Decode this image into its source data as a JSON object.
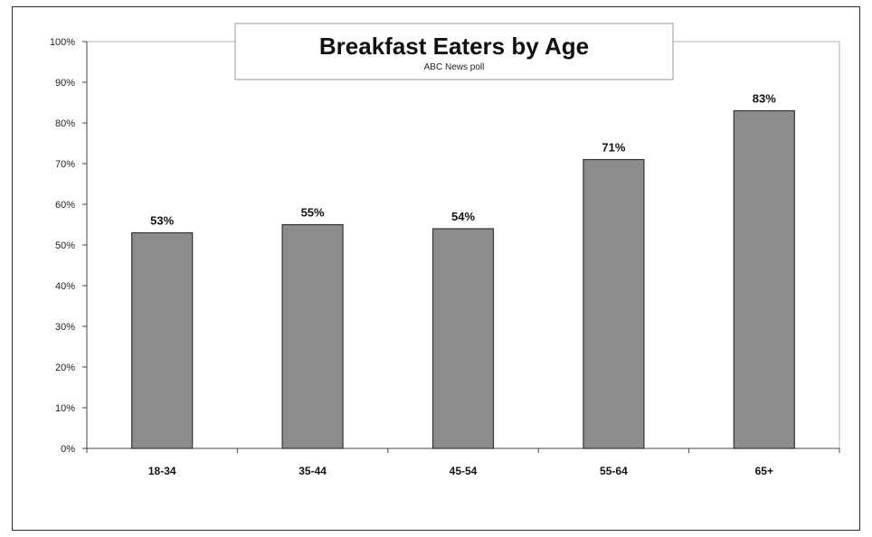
{
  "chart_data": {
    "type": "bar",
    "title": "Breakfast Eaters by Age",
    "subtitle": "ABC News poll",
    "categories": [
      "18-34",
      "35-44",
      "45-54",
      "55-64",
      "65+"
    ],
    "values": [
      53,
      55,
      54,
      71,
      83
    ],
    "data_labels": [
      "53%",
      "55%",
      "54%",
      "71%",
      "83%"
    ],
    "ylim": [
      0,
      100
    ],
    "yticks": [
      0,
      10,
      20,
      30,
      40,
      50,
      60,
      70,
      80,
      90,
      100
    ],
    "ytick_labels": [
      "0%",
      "10%",
      "20%",
      "30%",
      "40%",
      "50%",
      "60%",
      "70%",
      "80%",
      "90%",
      "100%"
    ],
    "grid": false,
    "legend": "none",
    "colors": {
      "bar_fill": "#8c8c8c",
      "bar_stroke": "#333333",
      "axis": "#444444"
    }
  }
}
